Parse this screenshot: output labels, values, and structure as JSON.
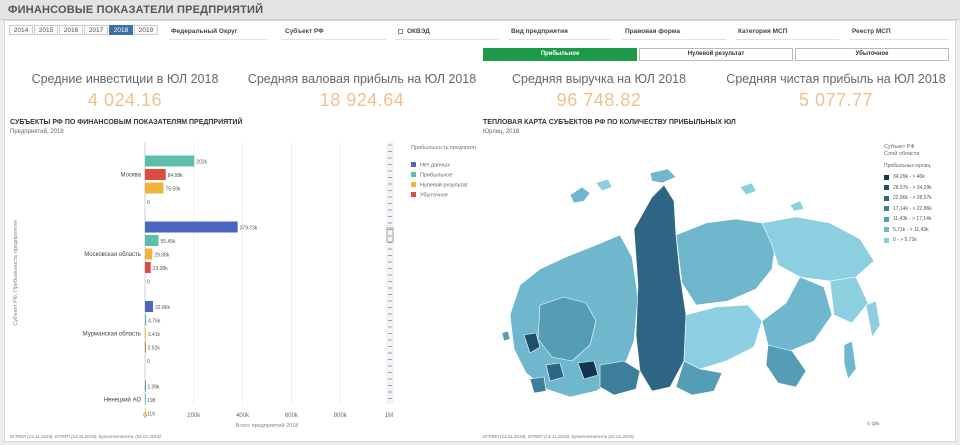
{
  "app": {
    "title": "ФИНАНСОВЫЕ ПОКАЗАТЕЛИ ПРЕДПРИЯТИЙ"
  },
  "years": {
    "items": [
      "2014",
      "2015",
      "2016",
      "2017",
      "2018",
      "2019"
    ],
    "selected": "2018"
  },
  "filters": {
    "federal_district": "Федеральный Округ",
    "subject": "Субъект РФ",
    "okved": "ОКВЭД",
    "enterprise_type": "Вид предприятия",
    "legal_form": "Правовая форма",
    "msp_category": "Категория МСП",
    "msp_registry": "Реестр МСП"
  },
  "segments": {
    "profitable": "Прибыльное",
    "zero": "Нулевой результат",
    "loss": "Убыточное",
    "selected": "Прибыльное"
  },
  "kpis": [
    {
      "label": "Средние инвестиции в ЮЛ 2018",
      "value": "4 024.16"
    },
    {
      "label": "Средняя валовая прибыль на ЮЛ 2018",
      "value": "18 924.64"
    },
    {
      "label": "Средняя выручка на ЮЛ 2018",
      "value": "96 748.82"
    },
    {
      "label": "Средняя чистая прибыль на ЮЛ 2018",
      "value": "5 077.77"
    }
  ],
  "bar_chart": {
    "title": "СУБЪЕКТЫ РФ ПО ФИНАНСОВЫМ ПОКАЗАТЕЛЯМ ПРЕДПРИЯТИЙ",
    "subtitle": "Предприятий, 2018",
    "footnote": "ЕГРЮЛ (14.11.2019), ЕГРИП (14.11.2019), Бухотчетность (01.01.2019)"
  },
  "map_chart": {
    "title": "ТЕПЛОВАЯ КАРТА СУБЪЕКТОВ РФ ПО КОЛИЧЕСТВУ ПРИБЫЛЬНЫХ ЮЛ",
    "subtitle": "Юрлиц, 2018",
    "footnote": "ЕГРЮЛ (14.11.2019), ЕГРИП (14.11.2019), Бухотчетность (01.01.2019)",
    "legend_title_1": "Субъект РФ",
    "legend_title_2": "Слой области",
    "legend_title_3": "Прибыльных юрлиц",
    "legend": [
      {
        "label": "34,29k - > 40k",
        "color": "#12364f"
      },
      {
        "label": "28,57k - > 34,29k",
        "color": "#1f4f6e"
      },
      {
        "label": "22,86k - > 28,57k",
        "color": "#2e6585"
      },
      {
        "label": "17,14k - > 22,86k",
        "color": "#3e7f9b"
      },
      {
        "label": "11,43k - > 17,14k",
        "color": "#559cb5"
      },
      {
        "label": "5,71k - > 11,43k",
        "color": "#6fb7cd"
      },
      {
        "label": "0 - > 5,71k",
        "color": "#8ccfe0"
      }
    ],
    "credit": "© Qlik"
  },
  "chart_data": {
    "type": "bar",
    "orientation": "horizontal",
    "title": "СУБЪЕКТЫ РФ ПО ФИНАНСОВЫМ ПОКАЗАТЕЛЯМ ПРЕДПРИЯТИЙ",
    "subtitle": "Предприятий, 2018",
    "xlabel": "Всего предприятий 2018",
    "ylabel": "Субъект РФ, Прибыльность предприятия",
    "xlim": [
      0,
      1000000
    ],
    "xticks": [
      {
        "value": 0,
        "label": "0"
      },
      {
        "value": 200000,
        "label": "200k"
      },
      {
        "value": 400000,
        "label": "400k"
      },
      {
        "value": 600000,
        "label": "600k"
      },
      {
        "value": 800000,
        "label": "800k"
      },
      {
        "value": 1000000,
        "label": "1M"
      }
    ],
    "legend_title": "Прибыльность предприятия",
    "legend_position": "right",
    "series": [
      {
        "name": "Нет данных",
        "color": "#4a66c2"
      },
      {
        "name": "Прибыльное",
        "color": "#5dbfaa"
      },
      {
        "name": "Нулевой результат",
        "color": "#f1b43a"
      },
      {
        "name": "Убыточное",
        "color": "#de4c3f"
      }
    ],
    "groups": [
      {
        "category": "Москва",
        "values": [
          {
            "series": "Нет данных",
            "value": 0,
            "label": ""
          },
          {
            "series": "Прибыльное",
            "value": 202000,
            "label": "202k"
          },
          {
            "series": "Убыточное",
            "value": 84980,
            "label": "84.98k"
          },
          {
            "series": "Нулевой результат",
            "value": 75590,
            "label": "75.59k"
          },
          {
            "series": "",
            "value": 0,
            "label": "0"
          }
        ]
      },
      {
        "category": "Московская область",
        "values": [
          {
            "series": "Нет данных",
            "value": 379730,
            "label": "379.73k"
          },
          {
            "series": "Прибыльное",
            "value": 55450,
            "label": "55.45k"
          },
          {
            "series": "Нулевой результат",
            "value": 29880,
            "label": "29.88k"
          },
          {
            "series": "Убыточное",
            "value": 23380,
            "label": "23.38k"
          },
          {
            "series": "",
            "value": 0,
            "label": "0"
          }
        ]
      },
      {
        "category": "Мурманская область",
        "values": [
          {
            "series": "Нет данных",
            "value": 32860,
            "label": "32.86k"
          },
          {
            "series": "Прибыльное",
            "value": 4760,
            "label": "4.76k"
          },
          {
            "series": "Нулевой результат",
            "value": 3410,
            "label": "3.41k"
          },
          {
            "series": "Убыточное",
            "value": 2520,
            "label": "2.52k"
          },
          {
            "series": "",
            "value": 0,
            "label": "0"
          }
        ]
      },
      {
        "category": "Ненецкий АО",
        "values": [
          {
            "series": "Нет данных",
            "value": 1390,
            "label": "1.39k"
          },
          {
            "series": "Прибыльное",
            "value": 198,
            "label": "198"
          },
          {
            "series": "Нулевой результат",
            "value": 116,
            "label": "116"
          }
        ]
      }
    ]
  }
}
